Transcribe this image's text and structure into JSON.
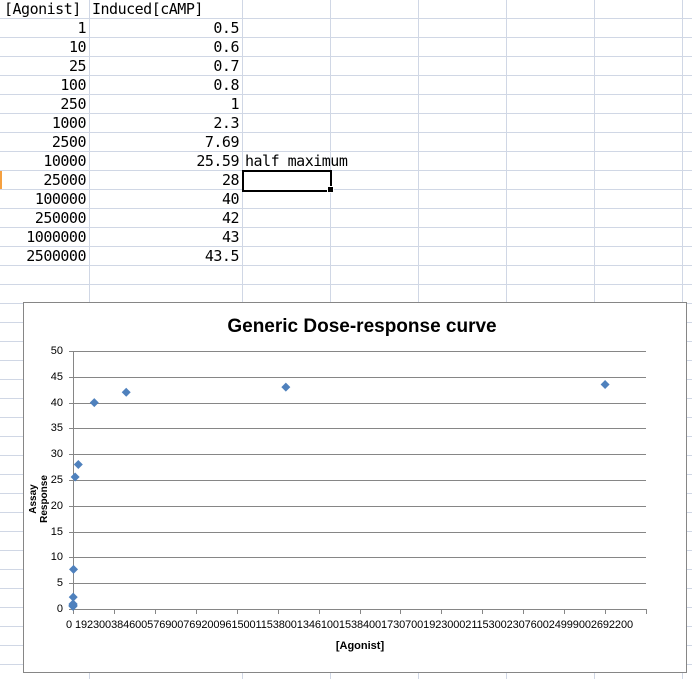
{
  "spreadsheet": {
    "headers": {
      "col_a": "[Agonist]",
      "col_b": "Induced[cAMP]"
    },
    "rows": [
      {
        "agonist": "1",
        "camp": "0.5",
        "note": ""
      },
      {
        "agonist": "10",
        "camp": "0.6",
        "note": ""
      },
      {
        "agonist": "25",
        "camp": "0.7",
        "note": ""
      },
      {
        "agonist": "100",
        "camp": "0.8",
        "note": ""
      },
      {
        "agonist": "250",
        "camp": "1",
        "note": ""
      },
      {
        "agonist": "1000",
        "camp": "2.3",
        "note": ""
      },
      {
        "agonist": "2500",
        "camp": "7.69",
        "note": ""
      },
      {
        "agonist": "10000",
        "camp": "25.59",
        "note": "half maximum"
      },
      {
        "agonist": "25000",
        "camp": "28",
        "note": ""
      },
      {
        "agonist": "100000",
        "camp": "40",
        "note": ""
      },
      {
        "agonist": "250000",
        "camp": "42",
        "note": ""
      },
      {
        "agonist": "1000000",
        "camp": "43",
        "note": ""
      },
      {
        "agonist": "2500000",
        "camp": "43.5",
        "note": ""
      }
    ],
    "selected_cell": {
      "row_index": 8,
      "column": "C",
      "value": ""
    },
    "active_row_color": "#f5a040",
    "gridline_color": "#d0d7e5"
  },
  "chart_data": {
    "type": "scatter",
    "title": "Generic Dose-response curve",
    "xlabel": "[Agonist]",
    "ylabel": "Assay Response",
    "xlim": [
      0,
      2692200
    ],
    "ylim": [
      0,
      50
    ],
    "x_ticks": [
      "0",
      "192300",
      "384600",
      "576900",
      "769200",
      "961500",
      "1153800",
      "1346100",
      "1538400",
      "1730700",
      "1923000",
      "2115300",
      "2307600",
      "2499900",
      "2692200"
    ],
    "x_ticks_rendered": "0   192300384600576900769200961500115380013461001538400173070019230002115300230760024999002692200",
    "y_ticks": [
      "0",
      "5",
      "10",
      "15",
      "20",
      "25",
      "30",
      "35",
      "40",
      "45",
      "50"
    ],
    "grid": true,
    "legend": null,
    "marker": "diamond",
    "marker_color": "#4f81bd",
    "series": [
      {
        "name": "Induced[cAMP]",
        "x": [
          1,
          10,
          25,
          100,
          250,
          1000,
          2500,
          10000,
          25000,
          100000,
          250000,
          1000000,
          2500000
        ],
        "y": [
          0.5,
          0.6,
          0.7,
          0.8,
          1,
          2.3,
          7.69,
          25.59,
          28,
          40,
          42,
          43,
          43.5
        ]
      }
    ]
  }
}
